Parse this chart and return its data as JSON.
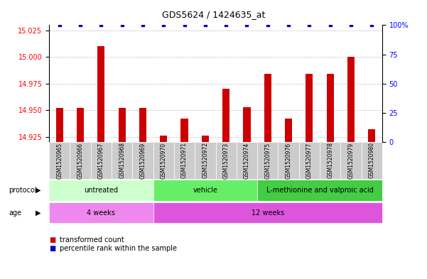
{
  "title": "GDS5624 / 1424635_at",
  "samples": [
    "GSM1520965",
    "GSM1520966",
    "GSM1520967",
    "GSM1520968",
    "GSM1520969",
    "GSM1520970",
    "GSM1520971",
    "GSM1520972",
    "GSM1520973",
    "GSM1520974",
    "GSM1520975",
    "GSM1520976",
    "GSM1520977",
    "GSM1520978",
    "GSM1520979",
    "GSM1520980"
  ],
  "bar_values": [
    14.952,
    14.952,
    15.01,
    14.952,
    14.952,
    14.926,
    14.942,
    14.926,
    14.97,
    14.953,
    14.984,
    14.942,
    14.984,
    14.984,
    15.0,
    14.932
  ],
  "percentile_values": [
    100,
    100,
    100,
    100,
    100,
    100,
    100,
    100,
    100,
    100,
    100,
    100,
    100,
    100,
    100,
    100
  ],
  "ylim_left": [
    14.92,
    15.03
  ],
  "ylim_right": [
    0,
    100
  ],
  "yticks_left": [
    14.925,
    14.95,
    14.975,
    15.0,
    15.025
  ],
  "yticks_right": [
    0,
    25,
    50,
    75,
    100
  ],
  "bar_color": "#cc0000",
  "percentile_color": "#0000cc",
  "protocol_groups": [
    {
      "label": "untreated",
      "start": 0,
      "end": 4,
      "color": "#ccffcc"
    },
    {
      "label": "vehicle",
      "start": 5,
      "end": 9,
      "color": "#66ee66"
    },
    {
      "label": "L-methionine and valproic acid",
      "start": 10,
      "end": 15,
      "color": "#44cc44"
    }
  ],
  "age_groups": [
    {
      "label": "4 weeks",
      "start": 0,
      "end": 4,
      "color": "#ee88ee"
    },
    {
      "label": "12 weeks",
      "start": 5,
      "end": 15,
      "color": "#dd55dd"
    }
  ],
  "protocol_label": "protocol",
  "age_label": "age",
  "legend_bar_label": "transformed count",
  "legend_percentile_label": "percentile rank within the sample",
  "tick_bg_color": "#cccccc",
  "grid_color": "#888888"
}
